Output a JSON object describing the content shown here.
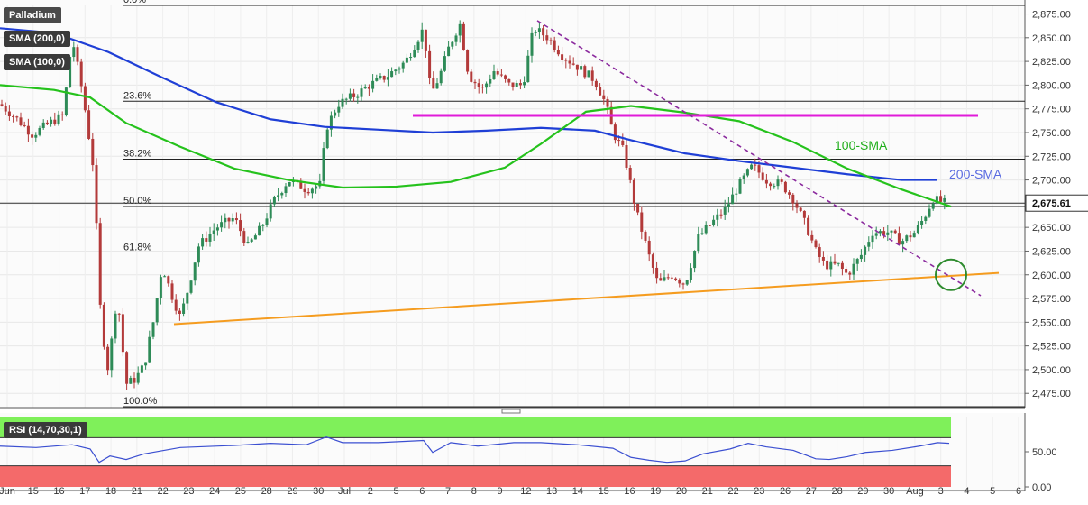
{
  "instrument": "Palladium",
  "indicators": {
    "sma200": "SMA (200,0)",
    "sma100": "SMA (100,0)",
    "rsi": "RSI (14,70,30,1)"
  },
  "colors": {
    "candle_up": "#2e8b57",
    "candle_down": "#b33a3a",
    "sma200": "#1f3fd6",
    "sma100": "#25c21c",
    "resistance": "#e01bd9",
    "support": "#f59c1f",
    "trendline": "#8b2a9e",
    "circle": "#2e8b2e",
    "rsi_line": "#3b4fd1",
    "rsi_ob": "#7ff05a",
    "rsi_os": "#f46a6a"
  },
  "chart_data": {
    "type": "candlestick",
    "ylim": [
      2460,
      2885
    ],
    "y_ticks": [
      "2,875.00",
      "2,850.00",
      "2,825.00",
      "2,800.00",
      "2,775.00",
      "2,750.00",
      "2,725.00",
      "2,700.00",
      "2,675.00",
      "2,650.00",
      "2,625.00",
      "2,600.00",
      "2,575.00",
      "2,550.00",
      "2,525.00",
      "2,500.00",
      "2,475.00"
    ],
    "current_price": "2,675.61",
    "current_value": 2675.61,
    "x_ticks": [
      "Jun",
      "15",
      "16",
      "17",
      "18",
      "21",
      "22",
      "23",
      "24",
      "25",
      "28",
      "29",
      "30",
      "Jul",
      "2",
      "5",
      "6",
      "7",
      "8",
      "9",
      "12",
      "13",
      "14",
      "15",
      "16",
      "19",
      "20",
      "21",
      "22",
      "23",
      "26",
      "27",
      "28",
      "29",
      "30",
      "Aug",
      "3",
      "4",
      "5",
      "6"
    ],
    "fibonacci": [
      {
        "label": "0.0%",
        "value": 2884
      },
      {
        "label": "23.6%",
        "value": 2783
      },
      {
        "label": "38.2%",
        "value": 2722
      },
      {
        "label": "50.0%",
        "value": 2672
      },
      {
        "label": "61.8%",
        "value": 2623
      },
      {
        "label": "100.0%",
        "value": 2461
      }
    ],
    "annotations": {
      "sma100": "100-SMA",
      "sma200": "200-SMA"
    },
    "price_path": [
      [
        0,
        2780
      ],
      [
        18,
        2765
      ],
      [
        36,
        2748
      ],
      [
        55,
        2760
      ],
      [
        70,
        2768
      ],
      [
        80,
        2850
      ],
      [
        92,
        2790
      ],
      [
        104,
        2710
      ],
      [
        112,
        2550
      ],
      [
        120,
        2500
      ],
      [
        130,
        2580
      ],
      [
        140,
        2485
      ],
      [
        150,
        2490
      ],
      [
        160,
        2505
      ],
      [
        170,
        2550
      ],
      [
        180,
        2610
      ],
      [
        190,
        2580
      ],
      [
        200,
        2555
      ],
      [
        210,
        2590
      ],
      [
        220,
        2630
      ],
      [
        240,
        2650
      ],
      [
        260,
        2660
      ],
      [
        275,
        2630
      ],
      [
        290,
        2650
      ],
      [
        305,
        2680
      ],
      [
        320,
        2700
      ],
      [
        340,
        2690
      ],
      [
        355,
        2695
      ],
      [
        362,
        2755
      ],
      [
        375,
        2780
      ],
      [
        395,
        2790
      ],
      [
        410,
        2800
      ],
      [
        430,
        2810
      ],
      [
        450,
        2825
      ],
      [
        470,
        2860
      ],
      [
        478,
        2790
      ],
      [
        488,
        2810
      ],
      [
        498,
        2840
      ],
      [
        510,
        2865
      ],
      [
        520,
        2810
      ],
      [
        535,
        2795
      ],
      [
        548,
        2815
      ],
      [
        565,
        2800
      ],
      [
        580,
        2800
      ],
      [
        592,
        2860
      ],
      [
        608,
        2850
      ],
      [
        625,
        2830
      ],
      [
        640,
        2820
      ],
      [
        660,
        2805
      ],
      [
        672,
        2780
      ],
      [
        680,
        2750
      ],
      [
        692,
        2730
      ],
      [
        705,
        2670
      ],
      [
        720,
        2620
      ],
      [
        730,
        2590
      ],
      [
        745,
        2600
      ],
      [
        760,
        2590
      ],
      [
        775,
        2640
      ],
      [
        790,
        2655
      ],
      [
        805,
        2670
      ],
      [
        820,
        2695
      ],
      [
        835,
        2715
      ],
      [
        850,
        2700
      ],
      [
        868,
        2695
      ],
      [
        880,
        2680
      ],
      [
        895,
        2650
      ],
      [
        905,
        2625
      ],
      [
        915,
        2610
      ],
      [
        930,
        2610
      ],
      [
        940,
        2600
      ],
      [
        955,
        2620
      ],
      [
        968,
        2645
      ],
      [
        985,
        2645
      ],
      [
        1000,
        2635
      ],
      [
        1015,
        2645
      ],
      [
        1025,
        2660
      ],
      [
        1035,
        2680
      ],
      [
        1050,
        2675
      ]
    ],
    "sma200_path": [
      [
        0,
        2860
      ],
      [
        60,
        2855
      ],
      [
        120,
        2835
      ],
      [
        180,
        2808
      ],
      [
        240,
        2782
      ],
      [
        300,
        2764
      ],
      [
        360,
        2756
      ],
      [
        420,
        2753
      ],
      [
        480,
        2750
      ],
      [
        540,
        2752
      ],
      [
        600,
        2755
      ],
      [
        660,
        2752
      ],
      [
        700,
        2742
      ],
      [
        760,
        2728
      ],
      [
        820,
        2720
      ],
      [
        880,
        2713
      ],
      [
        940,
        2706
      ],
      [
        1000,
        2700
      ],
      [
        1040,
        2700
      ]
    ],
    "sma100_path": [
      [
        0,
        2800
      ],
      [
        60,
        2795
      ],
      [
        100,
        2787
      ],
      [
        140,
        2760
      ],
      [
        200,
        2735
      ],
      [
        260,
        2712
      ],
      [
        320,
        2700
      ],
      [
        380,
        2692
      ],
      [
        440,
        2693
      ],
      [
        500,
        2698
      ],
      [
        560,
        2713
      ],
      [
        600,
        2738
      ],
      [
        650,
        2772
      ],
      [
        700,
        2778
      ],
      [
        760,
        2771
      ],
      [
        820,
        2762
      ],
      [
        880,
        2740
      ],
      [
        940,
        2712
      ],
      [
        1000,
        2690
      ],
      [
        1055,
        2672
      ]
    ],
    "resistance_line": [
      [
        458,
        2768
      ],
      [
        1085,
        2768
      ]
    ],
    "support_line": [
      [
        193,
        2548
      ],
      [
        1108,
        2602
      ]
    ],
    "trendline": [
      [
        596,
        2868
      ],
      [
        1088,
        2578
      ]
    ],
    "breakout_circle": [
      1055,
      2600
    ],
    "rsi": {
      "ylim": [
        0,
        100
      ],
      "y_ticks": [
        "50.00",
        "0.00"
      ],
      "overbought": 70,
      "oversold": 30,
      "values": [
        [
          0,
          58
        ],
        [
          40,
          56
        ],
        [
          80,
          60
        ],
        [
          100,
          54
        ],
        [
          110,
          35
        ],
        [
          122,
          44
        ],
        [
          140,
          39
        ],
        [
          160,
          47
        ],
        [
          200,
          56
        ],
        [
          260,
          59
        ],
        [
          300,
          62
        ],
        [
          340,
          60
        ],
        [
          362,
          71
        ],
        [
          380,
          63
        ],
        [
          420,
          63
        ],
        [
          470,
          66
        ],
        [
          480,
          49
        ],
        [
          500,
          63
        ],
        [
          530,
          58
        ],
        [
          570,
          63
        ],
        [
          600,
          63
        ],
        [
          640,
          60
        ],
        [
          680,
          55
        ],
        [
          700,
          42
        ],
        [
          720,
          38
        ],
        [
          740,
          35
        ],
        [
          760,
          37
        ],
        [
          780,
          47
        ],
        [
          810,
          54
        ],
        [
          830,
          62
        ],
        [
          850,
          57
        ],
        [
          880,
          52
        ],
        [
          905,
          40
        ],
        [
          920,
          39
        ],
        [
          940,
          43
        ],
        [
          960,
          49
        ],
        [
          990,
          52
        ],
        [
          1020,
          58
        ],
        [
          1040,
          63
        ],
        [
          1053,
          62
        ]
      ]
    }
  }
}
